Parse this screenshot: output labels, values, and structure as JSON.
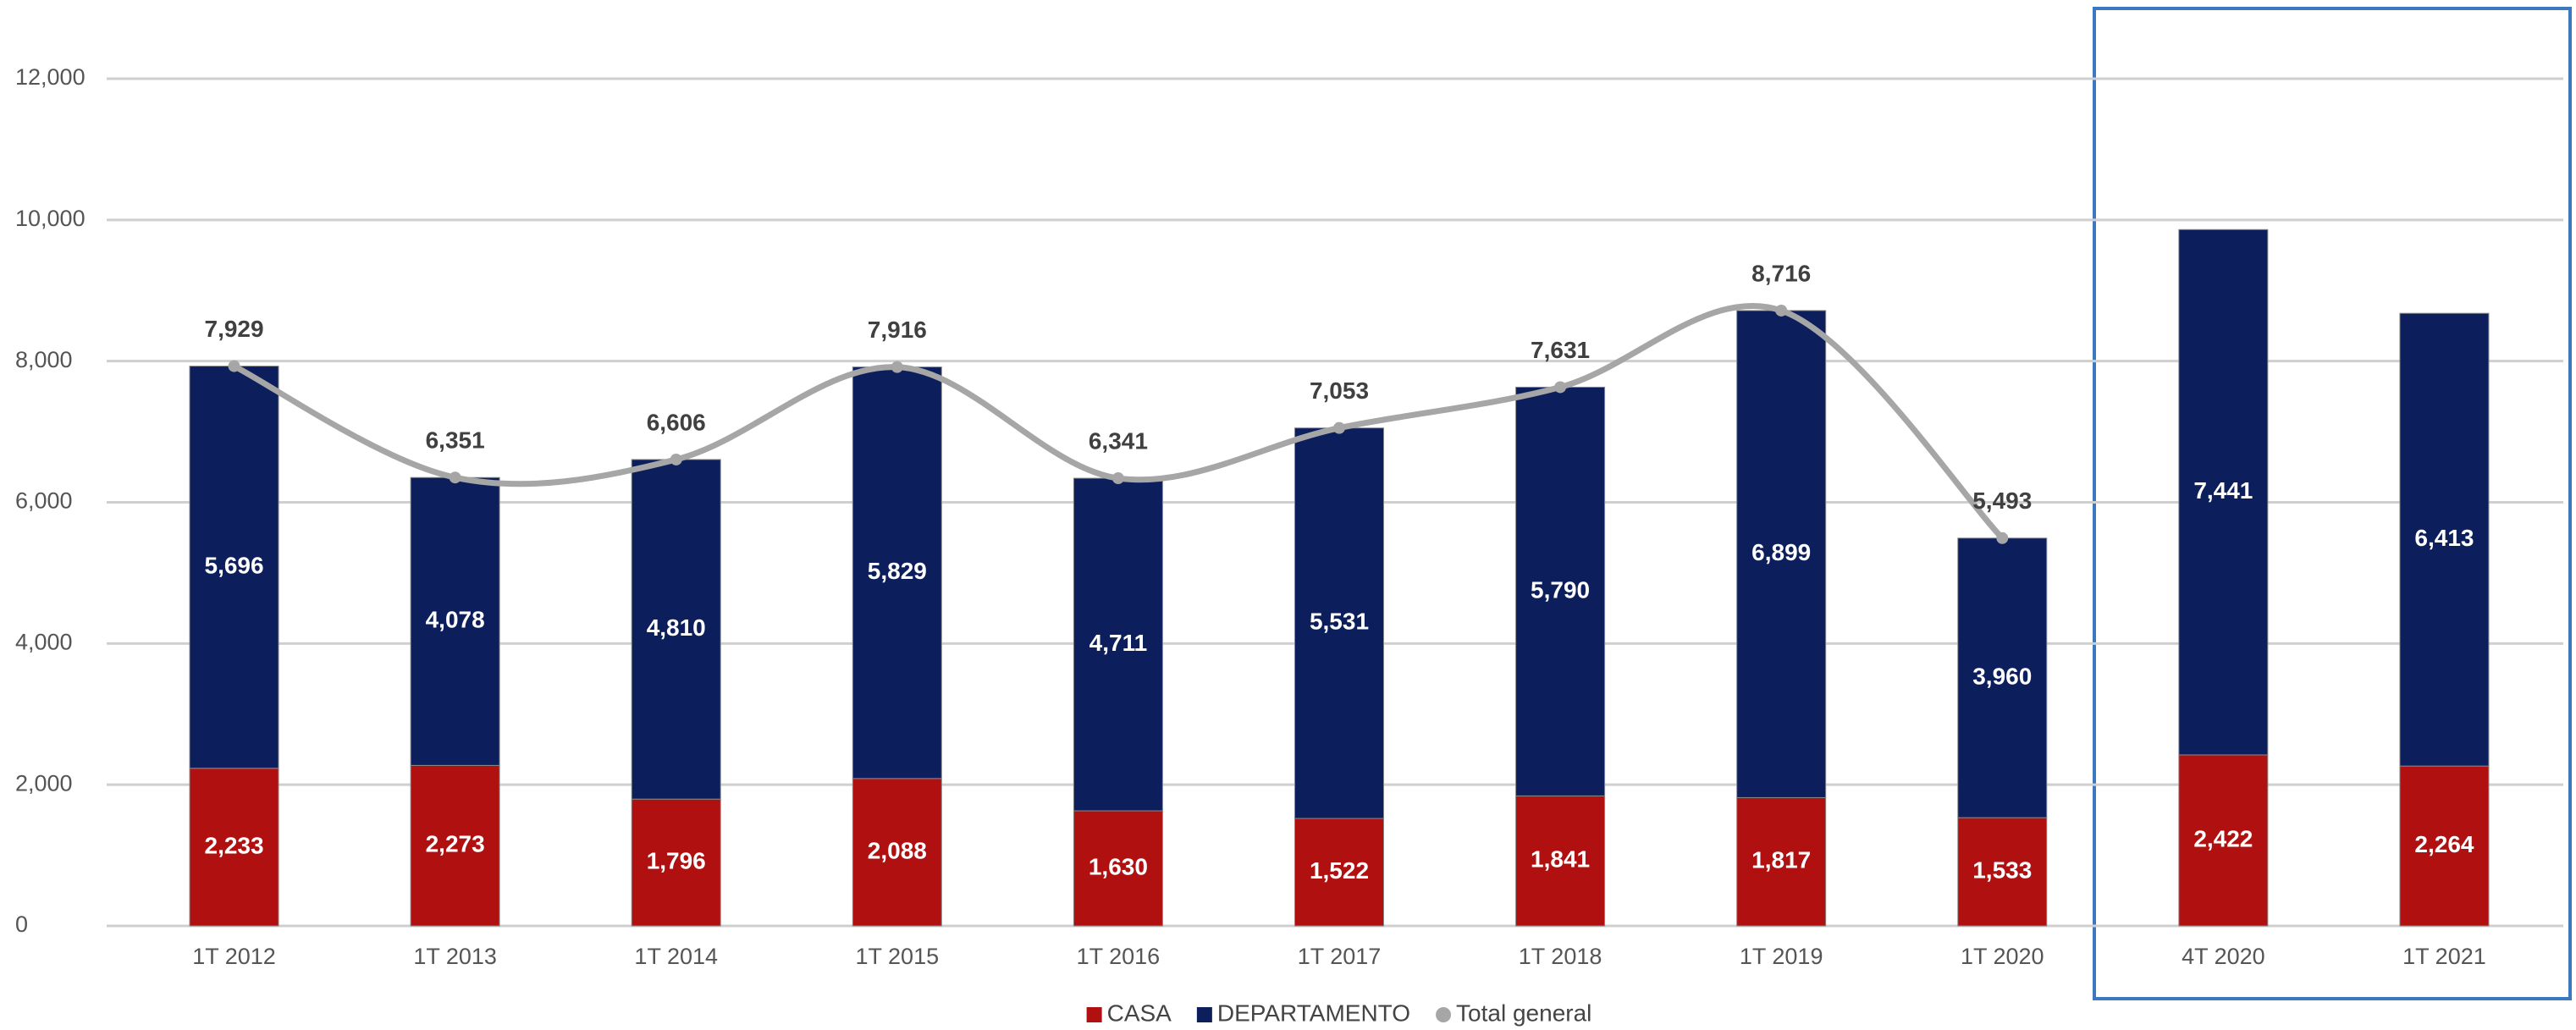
{
  "chart_data": {
    "type": "stacked_bar_line",
    "categories": [
      "1T 2012",
      "1T 2013",
      "1T 2014",
      "1T 2015",
      "1T 2016",
      "1T 2017",
      "1T 2018",
      "1T 2019",
      "1T 2020",
      "4T 2020",
      "1T 2021"
    ],
    "series": [
      {
        "name": "CASA",
        "color": "#b01010",
        "type": "bar",
        "values": [
          2233,
          2273,
          1796,
          2088,
          1630,
          1522,
          1841,
          1817,
          1533,
          2422,
          2264
        ],
        "value_labels": [
          "2,233",
          "2,273",
          "1,796",
          "2,088",
          "1,630",
          "1,522",
          "1,841",
          "1,817",
          "1,533",
          "2,422",
          "2,264"
        ]
      },
      {
        "name": "DEPARTAMENTO",
        "color": "#0c1f5c",
        "type": "bar",
        "values": [
          5696,
          4078,
          4810,
          5829,
          4711,
          5531,
          5790,
          6899,
          3960,
          7441,
          6413
        ],
        "value_labels": [
          "5,696",
          "4,078",
          "4,810",
          "5,829",
          "4,711",
          "5,531",
          "5,790",
          "6,899",
          "3,960",
          "7,441",
          "6,413"
        ]
      },
      {
        "name": "Total general",
        "color": "#a6a6a6",
        "type": "line",
        "values": [
          7929,
          6351,
          6606,
          7916,
          6341,
          7053,
          7631,
          8716,
          5493,
          null,
          null
        ],
        "value_labels": [
          "7,929",
          "6,351",
          "6,606",
          "7,916",
          "6,341",
          "7,053",
          "7,631",
          "8,716",
          "5,493",
          null,
          null
        ]
      }
    ],
    "ylim": [
      0,
      12000
    ],
    "yticks": [
      0,
      {
        "value": 2000,
        "label": "2,000"
      },
      {
        "value": 4000,
        "label": "4,000"
      },
      {
        "value": 6000,
        "label": "6,000"
      },
      {
        "value": 8000,
        "label": "8,000"
      },
      {
        "value": 10000,
        "label": "10,000"
      },
      {
        "value": 12000,
        "label": "12,000"
      }
    ],
    "grid": true,
    "legend": "bottom"
  }
}
